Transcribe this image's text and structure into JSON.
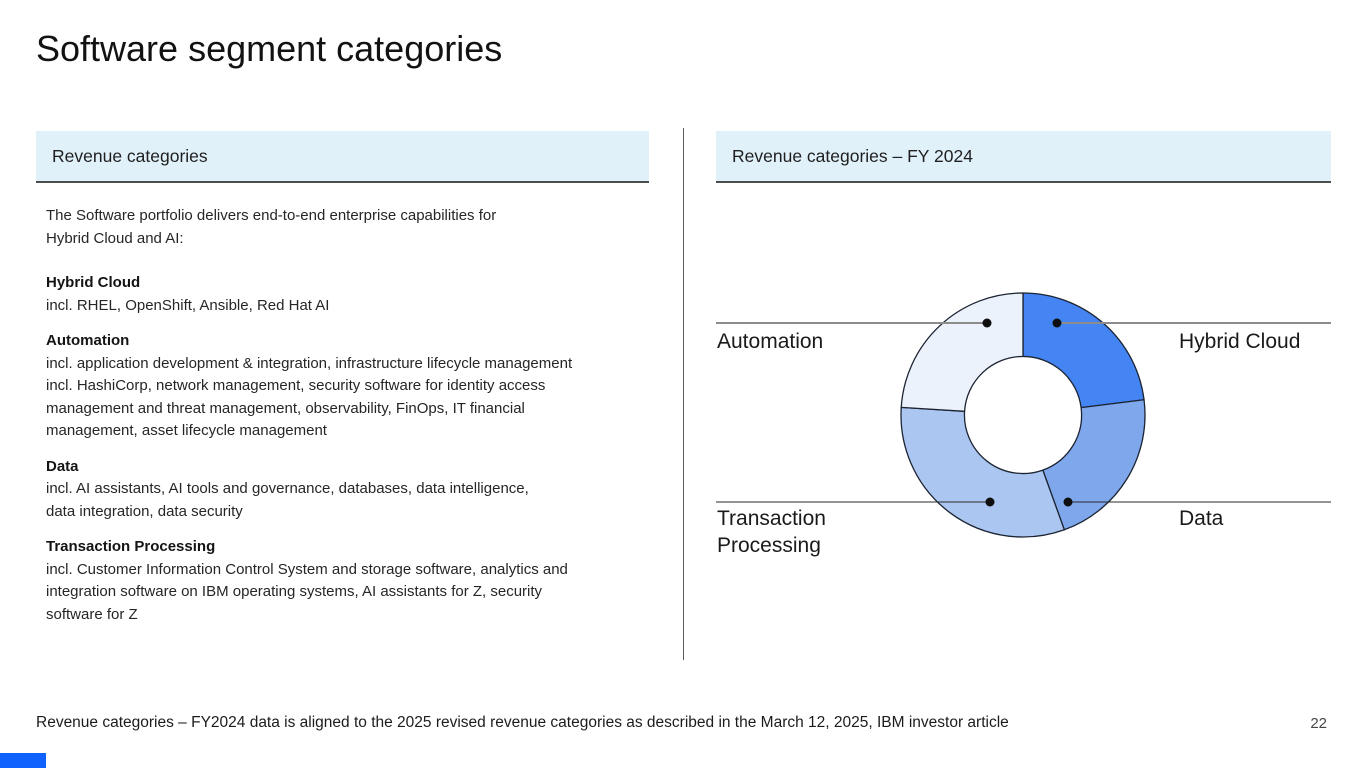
{
  "slide": {
    "title": "Software segment categories",
    "page_number": "22",
    "footnote": "Revenue categories – FY2024 data is aligned to the 2025 revised revenue categories as described in the March 12, 2025, IBM investor article",
    "accent_color": "#0f62fe"
  },
  "left_panel": {
    "header": "Revenue categories",
    "intro": "The Software portfolio delivers end-to-end enterprise capabilities for\nHybrid Cloud and AI:",
    "sections": [
      {
        "heading": "Hybrid Cloud",
        "body": "incl. RHEL, OpenShift, Ansible, Red Hat AI"
      },
      {
        "heading": "Automation",
        "body": "incl. application development & integration, infrastructure lifecycle management\nincl. HashiCorp, network management, security software for identity access\nmanagement and threat management, observability, FinOps, IT financial\nmanagement, asset lifecycle management"
      },
      {
        "heading": "Data",
        "body": "incl. AI assistants, AI tools and governance, databases, data intelligence,\ndata integration, data security"
      },
      {
        "heading": "Transaction Processing",
        "body": "incl. Customer Information Control System and storage software, analytics and\nintegration software on IBM operating systems, AI assistants for Z, security\nsoftware for Z"
      }
    ]
  },
  "right_panel": {
    "header": "Revenue categories – FY 2024"
  },
  "chart_data": {
    "type": "pie",
    "subtype": "donut",
    "title": "Revenue categories – FY 2024",
    "labels": [
      "Hybrid Cloud",
      "Data",
      "Transaction Processing",
      "Automation"
    ],
    "values_pct_estimated": [
      23,
      21.5,
      31.5,
      24
    ],
    "colors": [
      "#4484f3",
      "#7fa7ec",
      "#abc7f1",
      "#ecf2fb"
    ],
    "start_angle_deg_from_top": 0,
    "clockwise": true,
    "inner_radius_ratio": 0.48,
    "outline_color": "#1c2433",
    "data_labels_shown": false,
    "legend_position": "callout-lines"
  }
}
